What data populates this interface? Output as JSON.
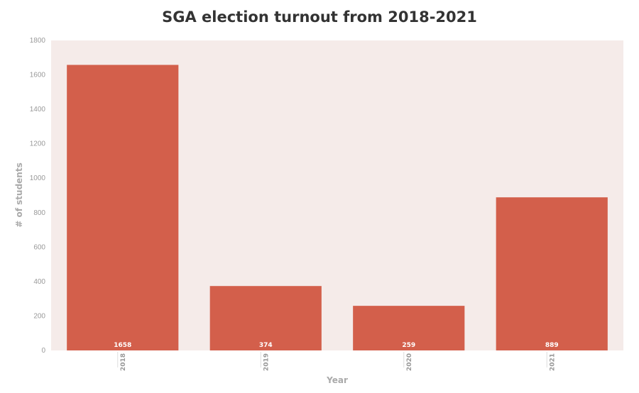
{
  "chart_data": {
    "type": "bar",
    "title": "SGA election turnout from 2018-2021",
    "xlabel": "Year",
    "ylabel": "# of students",
    "categories": [
      "2018",
      "2019",
      "2020",
      "2021"
    ],
    "values": [
      1658,
      374,
      259,
      889
    ],
    "data_labels": [
      "1658",
      "374",
      "259",
      "889"
    ],
    "ylim": [
      0,
      1800
    ],
    "yticks": [
      "0",
      "200",
      "400",
      "600",
      "800",
      "1000",
      "1200",
      "1400",
      "1600",
      "1800"
    ],
    "grid": false,
    "legend": "none",
    "colors": {
      "bar": "#d35f4b",
      "plot_background": "#f5ebe9",
      "title": "#333333",
      "tick": "#999999"
    }
  }
}
